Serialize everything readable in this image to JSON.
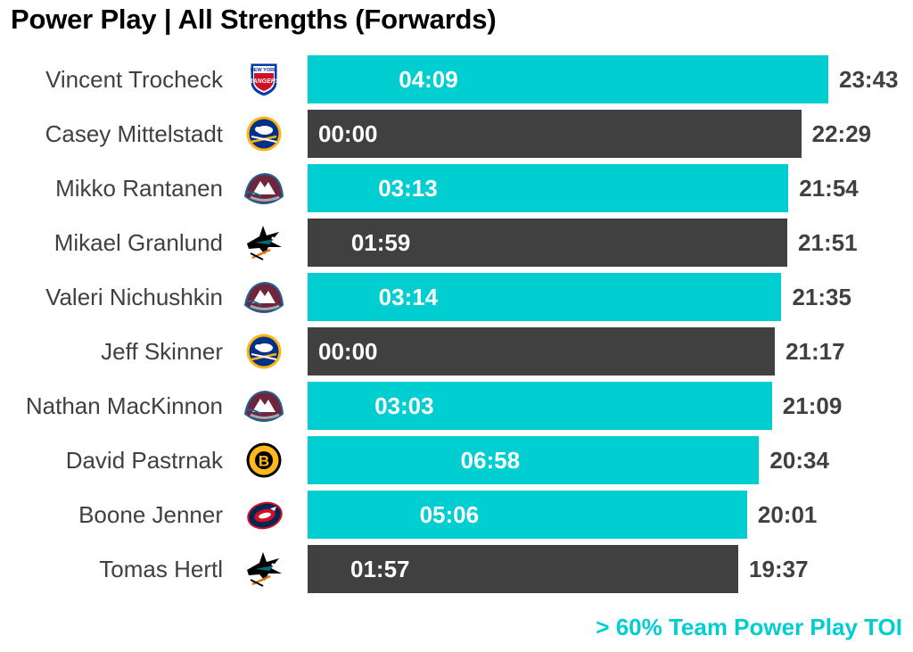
{
  "title": "Power Play | All Strengths (Forwards)",
  "footnote": "> 60% Team Power Play TOI",
  "colors": {
    "highlight": "#00CED1",
    "default": "#404040",
    "text_dark": "#404040"
  },
  "chart_data": {
    "type": "bar",
    "orientation": "horizontal",
    "title": "Power Play | All Strengths (Forwards)",
    "xlim": [
      "00:00",
      "23:43"
    ],
    "grid": false,
    "legend": "none",
    "rows": [
      {
        "player": "Vincent Trocheck",
        "team_logo": "nyr-logo-icon",
        "all_strengths_toi": "23:43",
        "power_play_toi": "04:09",
        "over_60pct_team_pp": true
      },
      {
        "player": "Casey Mittelstadt",
        "team_logo": "buf-logo-icon",
        "all_strengths_toi": "22:29",
        "power_play_toi": "00:00",
        "over_60pct_team_pp": false
      },
      {
        "player": "Mikko Rantanen",
        "team_logo": "col-logo-icon",
        "all_strengths_toi": "21:54",
        "power_play_toi": "03:13",
        "over_60pct_team_pp": true
      },
      {
        "player": "Mikael Granlund",
        "team_logo": "sjs-logo-icon",
        "all_strengths_toi": "21:51",
        "power_play_toi": "01:59",
        "over_60pct_team_pp": false
      },
      {
        "player": "Valeri Nichushkin",
        "team_logo": "col-logo-icon",
        "all_strengths_toi": "21:35",
        "power_play_toi": "03:14",
        "over_60pct_team_pp": true
      },
      {
        "player": "Jeff Skinner",
        "team_logo": "buf-logo-icon",
        "all_strengths_toi": "21:17",
        "power_play_toi": "00:00",
        "over_60pct_team_pp": false
      },
      {
        "player": "Nathan MacKinnon",
        "team_logo": "col-logo-icon",
        "all_strengths_toi": "21:09",
        "power_play_toi": "03:03",
        "over_60pct_team_pp": true
      },
      {
        "player": "David Pastrnak",
        "team_logo": "bos-logo-icon",
        "all_strengths_toi": "20:34",
        "power_play_toi": "06:58",
        "over_60pct_team_pp": true
      },
      {
        "player": "Boone Jenner",
        "team_logo": "cbj-logo-icon",
        "all_strengths_toi": "20:01",
        "power_play_toi": "05:06",
        "over_60pct_team_pp": true
      },
      {
        "player": "Tomas Hertl",
        "team_logo": "sjs-logo-icon",
        "all_strengths_toi": "19:37",
        "power_play_toi": "01:57",
        "over_60pct_team_pp": false
      }
    ]
  }
}
